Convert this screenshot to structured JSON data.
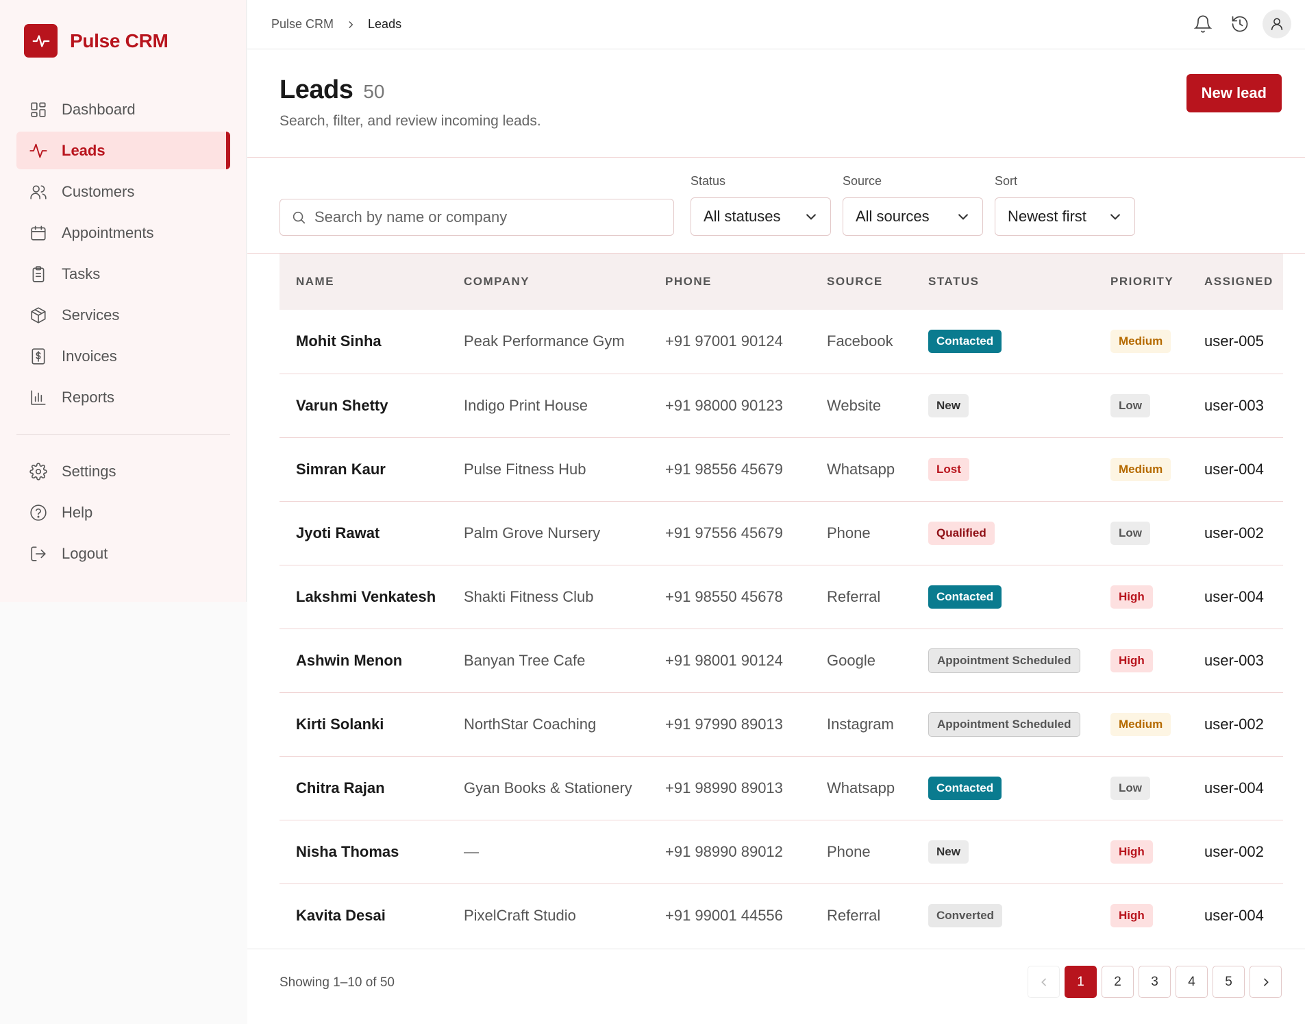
{
  "brand": {
    "name": "Pulse CRM"
  },
  "sidebar": {
    "items": [
      {
        "label": "Dashboard",
        "icon": "grid-icon"
      },
      {
        "label": "Leads",
        "icon": "activity-icon",
        "active": true
      },
      {
        "label": "Customers",
        "icon": "users-icon"
      },
      {
        "label": "Appointments",
        "icon": "calendar-icon"
      },
      {
        "label": "Tasks",
        "icon": "clipboard-icon"
      },
      {
        "label": "Services",
        "icon": "box-icon"
      },
      {
        "label": "Invoices",
        "icon": "invoice-icon"
      },
      {
        "label": "Reports",
        "icon": "bar-chart-icon"
      }
    ],
    "secondary": [
      {
        "label": "Settings",
        "icon": "gear-icon"
      },
      {
        "label": "Help",
        "icon": "help-icon"
      },
      {
        "label": "Logout",
        "icon": "logout-icon"
      }
    ]
  },
  "breadcrumb": {
    "root": "Pulse CRM",
    "current": "Leads"
  },
  "header": {
    "title": "Leads",
    "count": "50",
    "subtitle": "Search, filter, and review incoming leads.",
    "new_button": "New lead"
  },
  "filters": {
    "search_placeholder": "Search by name or company",
    "status_label": "Status",
    "status_value": "All statuses",
    "source_label": "Source",
    "source_value": "All sources",
    "sort_label": "Sort",
    "sort_value": "Newest first"
  },
  "table": {
    "columns": [
      "NAME",
      "COMPANY",
      "PHONE",
      "SOURCE",
      "STATUS",
      "PRIORITY",
      "ASSIGNED"
    ],
    "rows": [
      {
        "name": "Mohit Sinha",
        "company": "Peak Performance Gym",
        "phone": "+91 97001 90124",
        "source": "Facebook",
        "status": "Contacted",
        "priority": "Medium",
        "assigned": "user-005"
      },
      {
        "name": "Varun Shetty",
        "company": "Indigo Print House",
        "phone": "+91 98000 90123",
        "source": "Website",
        "status": "New",
        "priority": "Low",
        "assigned": "user-003"
      },
      {
        "name": "Simran Kaur",
        "company": "Pulse Fitness Hub",
        "phone": "+91 98556 45679",
        "source": "Whatsapp",
        "status": "Lost",
        "priority": "Medium",
        "assigned": "user-004"
      },
      {
        "name": "Jyoti Rawat",
        "company": "Palm Grove Nursery",
        "phone": "+91 97556 45679",
        "source": "Phone",
        "status": "Qualified",
        "priority": "Low",
        "assigned": "user-002"
      },
      {
        "name": "Lakshmi Venkatesh",
        "company": "Shakti Fitness Club",
        "phone": "+91 98550 45678",
        "source": "Referral",
        "status": "Contacted",
        "priority": "High",
        "assigned": "user-004"
      },
      {
        "name": "Ashwin Menon",
        "company": "Banyan Tree Cafe",
        "phone": "+91 98001 90124",
        "source": "Google",
        "status": "Appointment Scheduled",
        "priority": "High",
        "assigned": "user-003"
      },
      {
        "name": "Kirti Solanki",
        "company": "NorthStar Coaching",
        "phone": "+91 97990 89013",
        "source": "Instagram",
        "status": "Appointment Scheduled",
        "priority": "Medium",
        "assigned": "user-002"
      },
      {
        "name": "Chitra Rajan",
        "company": "Gyan Books & Stationery",
        "phone": "+91 98990 89013",
        "source": "Whatsapp",
        "status": "Contacted",
        "priority": "Low",
        "assigned": "user-004"
      },
      {
        "name": "Nisha Thomas",
        "company": "—",
        "phone": "+91 98990 89012",
        "source": "Phone",
        "status": "New",
        "priority": "High",
        "assigned": "user-002"
      },
      {
        "name": "Kavita Desai",
        "company": "PixelCraft Studio",
        "phone": "+91 99001 44556",
        "source": "Referral",
        "status": "Converted",
        "priority": "High",
        "assigned": "user-004"
      }
    ]
  },
  "pagination": {
    "summary": "Showing 1–10 of 50",
    "pages": [
      "1",
      "2",
      "3",
      "4",
      "5"
    ],
    "current": "1"
  },
  "colors": {
    "accent": "#b8141d",
    "contacted": "#0a7b8f"
  }
}
